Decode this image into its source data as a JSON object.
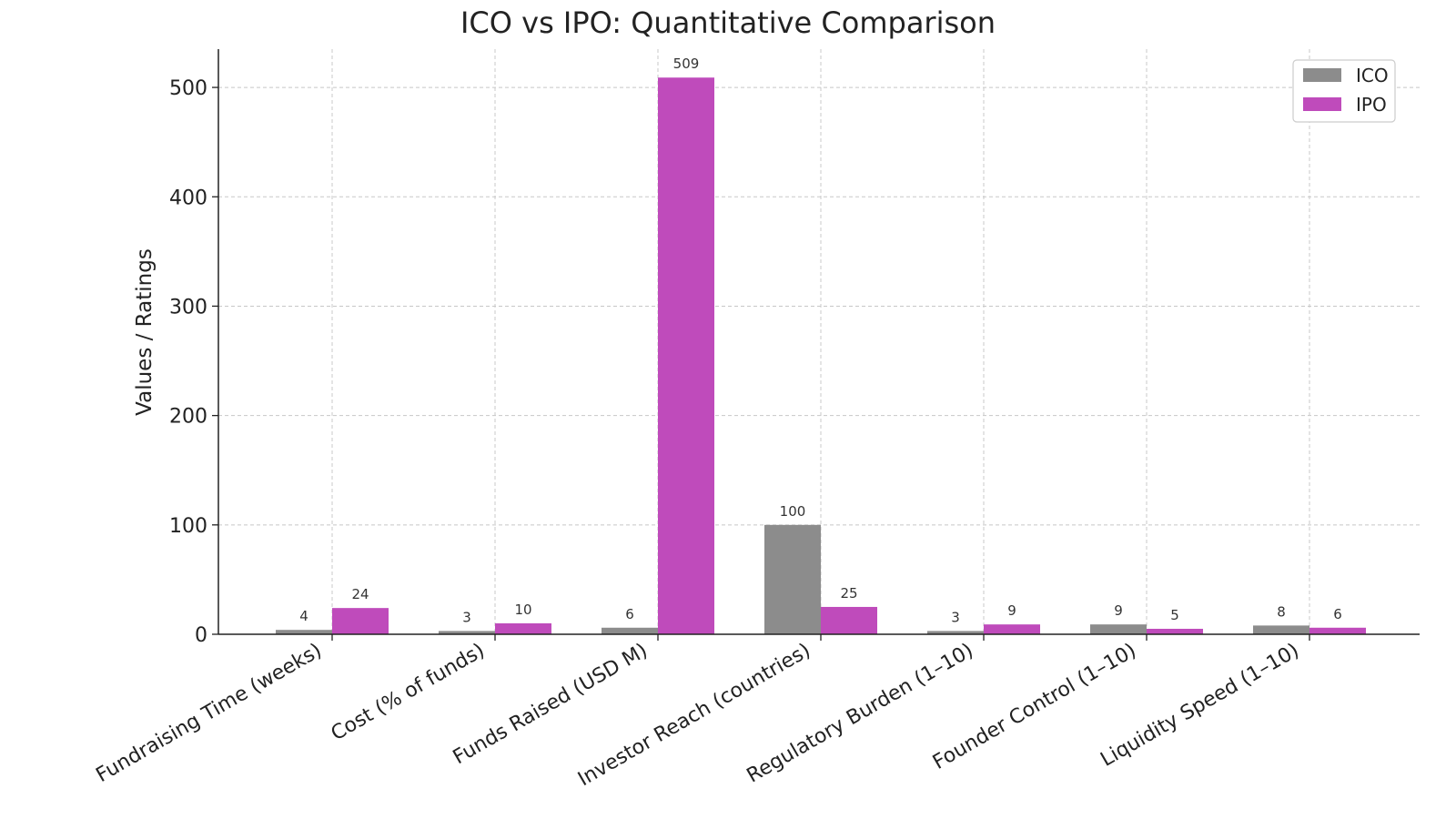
{
  "chart_data": {
    "type": "bar",
    "title": "ICO vs IPO: Quantitative Comparison",
    "xlabel": "",
    "ylabel": "Values / Ratings",
    "categories": [
      "Fundraising Time (weeks)",
      "Cost (% of funds)",
      "Funds Raised (USD M)",
      "Investor Reach (countries)",
      "Regulatory Burden (1–10)",
      "Founder Control (1–10)",
      "Liquidity Speed (1–10)"
    ],
    "series": [
      {
        "name": "ICO",
        "color": "#8c8c8c",
        "values": [
          4,
          3,
          6,
          100,
          3,
          9,
          8
        ]
      },
      {
        "name": "IPO",
        "color": "#bf4bbb",
        "values": [
          24,
          10,
          509,
          25,
          9,
          5,
          6
        ]
      }
    ],
    "ylim": [
      0,
      535
    ],
    "yticks": [
      0,
      100,
      200,
      300,
      400,
      500
    ],
    "grid": true,
    "legend_position": "top-right"
  }
}
